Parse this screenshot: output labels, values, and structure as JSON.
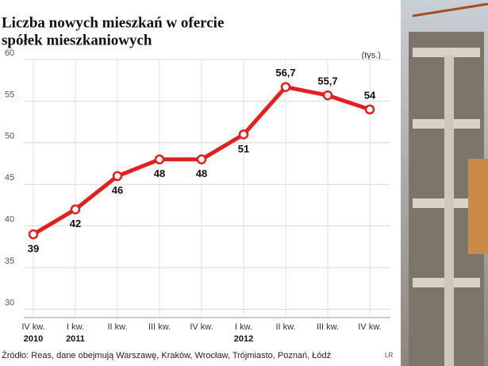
{
  "chart_data": {
    "type": "line",
    "title": [
      "Liczba nowych mieszkań w ofercie",
      "spółek mieszkaniowych"
    ],
    "unit": "(tys.)",
    "categories": [
      "IV kw.",
      "I kw.",
      "II kw.",
      "III kw.",
      "IV kw.",
      "I kw.",
      "II kw.",
      "III kw.",
      "IV kw."
    ],
    "years": [
      "2010",
      "2011",
      null,
      null,
      null,
      "2012",
      null,
      null,
      null
    ],
    "values": [
      39,
      42,
      46,
      48,
      48,
      51,
      56.7,
      55.7,
      54
    ],
    "value_labels": [
      "39",
      "42",
      "46",
      "48",
      "48",
      "51",
      "56,7",
      "55,7",
      "54"
    ],
    "color": "#e3201f",
    "ylim": [
      29,
      60
    ],
    "yticks": [
      30,
      35,
      40,
      45,
      50,
      55,
      60
    ],
    "grid": true,
    "source": "Źródło: Reas, dane obejmują Warszawę, Kraków, Wrocław, Trójmiasto, Poznań, Łódź",
    "credit": "LR"
  }
}
